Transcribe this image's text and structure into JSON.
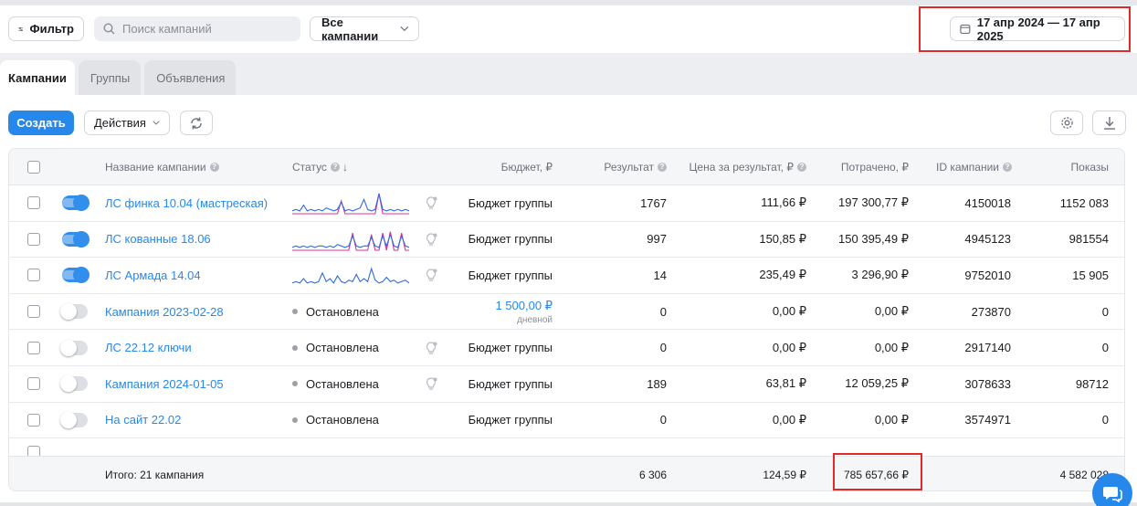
{
  "colors": {
    "accent": "#2688eb",
    "highlight": "#e1282a",
    "spark_pink": "#e0309c",
    "spark_blue": "#2d6be0"
  },
  "filterbar": {
    "filter_label": "Фильтр",
    "search_placeholder": "Поиск кампаний",
    "campaigns_select": "Все кампании",
    "date_range": "17 апр 2024 — 17 апр 2025"
  },
  "tabs": [
    {
      "label": "Кампании",
      "active": true
    },
    {
      "label": "Группы",
      "active": false
    },
    {
      "label": "Объявления",
      "active": false
    }
  ],
  "toolbar": {
    "create_label": "Создать",
    "actions_label": "Действия"
  },
  "table": {
    "headers": {
      "name": "Название кампании",
      "status": "Статус",
      "budget": "Бюджет, ₽",
      "result": "Результат",
      "cpr": "Цена за результат, ₽",
      "spent": "Потрачено, ₽",
      "id": "ID кампании",
      "shows": "Показы"
    },
    "rows": [
      {
        "on": true,
        "name": "ЛС финка 10.04 (мастреская)",
        "status": "",
        "spark": [
          2,
          3,
          2,
          6,
          2,
          3,
          2,
          3,
          2,
          4,
          3,
          2,
          3,
          8,
          2,
          3,
          2,
          3,
          4,
          10,
          3,
          2,
          3,
          14,
          3,
          2,
          3,
          2,
          3,
          2,
          3,
          2
        ],
        "spark2": [
          0,
          0,
          0,
          0,
          0,
          0,
          0,
          0,
          0,
          0,
          0,
          0,
          0,
          9,
          0,
          0,
          0,
          0,
          0,
          0,
          0,
          0,
          0,
          14,
          0,
          0,
          0,
          0,
          0,
          0,
          0,
          0
        ],
        "budget": "Бюджет группы",
        "budget_sub": "",
        "result": "1767",
        "cpr": "111,66 ₽",
        "spent": "197 300,77 ₽",
        "id": "4150018",
        "shows": "1152 083"
      },
      {
        "on": true,
        "name": "ЛС кованные 18.06",
        "status": "",
        "spark": [
          2,
          3,
          2,
          3,
          2,
          3,
          2,
          3,
          3,
          2,
          3,
          2,
          4,
          3,
          2,
          3,
          10,
          3,
          2,
          3,
          3,
          9,
          3,
          2,
          10,
          3,
          11,
          3,
          2,
          10,
          3,
          2
        ],
        "spark2": [
          0,
          0,
          0,
          0,
          0,
          0,
          0,
          0,
          0,
          0,
          0,
          0,
          0,
          0,
          0,
          0,
          12,
          0,
          0,
          0,
          0,
          11,
          0,
          0,
          12,
          0,
          13,
          0,
          0,
          12,
          0,
          0
        ],
        "budget": "Бюджет группы",
        "budget_sub": "",
        "result": "997",
        "cpr": "150,85 ₽",
        "spent": "150 395,49 ₽",
        "id": "4945123",
        "shows": "981554"
      },
      {
        "on": true,
        "name": "ЛС Армада 14.04",
        "status": "",
        "spark": [
          2,
          3,
          2,
          5,
          2,
          3,
          2,
          3,
          9,
          3,
          5,
          2,
          7,
          3,
          2,
          4,
          3,
          8,
          3,
          5,
          3,
          12,
          4,
          2,
          3,
          6,
          3,
          4,
          2,
          3,
          4,
          2
        ],
        "spark2": [],
        "budget": "Бюджет группы",
        "budget_sub": "",
        "result": "14",
        "cpr": "235,49 ₽",
        "spent": "3 296,90 ₽",
        "id": "9752010",
        "shows": "15 905"
      },
      {
        "on": false,
        "name": "Кампания 2023-02-28",
        "status": "Остановлена",
        "spark": [],
        "spark2": [],
        "budget": "1 500,00 ₽",
        "budget_sub": "дневной",
        "result": "0",
        "cpr": "0,00 ₽",
        "spent": "0,00 ₽",
        "id": "273870",
        "shows": "0"
      },
      {
        "on": false,
        "name": "ЛС 22.12 ключи",
        "status": "Остановлена",
        "spark": [],
        "spark2": [],
        "budget": "Бюджет группы",
        "budget_sub": "",
        "result": "0",
        "cpr": "0,00 ₽",
        "spent": "0,00 ₽",
        "id": "2917140",
        "shows": "0"
      },
      {
        "on": false,
        "name": "Кампания 2024-01-05",
        "status": "Остановлена",
        "spark": [],
        "spark2": [],
        "budget": "Бюджет группы",
        "budget_sub": "",
        "result": "189",
        "cpr": "63,81 ₽",
        "spent": "12 059,25 ₽",
        "id": "3078633",
        "shows": "98712"
      },
      {
        "on": false,
        "name": "На сайт 22.02",
        "status": "Остановлена",
        "spark": [],
        "spark2": [],
        "budget": "Бюджет группы",
        "budget_sub": "",
        "result": "0",
        "cpr": "0,00 ₽",
        "spent": "0,00 ₽",
        "id": "3574971",
        "shows": "0"
      }
    ],
    "bulbs": [
      true,
      true,
      true,
      false,
      true,
      true,
      false
    ],
    "totals": {
      "label": "Итого: 21 кампания",
      "result": "6 306",
      "cpr": "124,59 ₽",
      "spent": "785 657,66 ₽",
      "shows": "4 582 028"
    }
  }
}
